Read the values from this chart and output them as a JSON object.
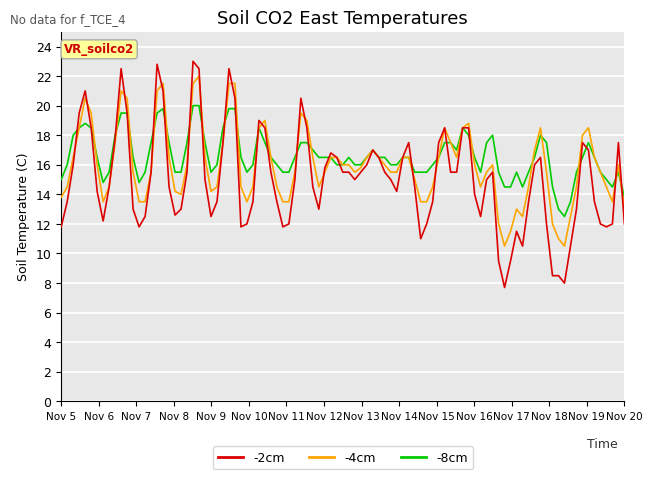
{
  "title": "Soil CO2 East Temperatures",
  "top_left_note": "No data for f_TCE_4",
  "ylabel": "Soil Temperature (C)",
  "xlabel": "Time",
  "annotation": "VR_soilco2",
  "ylim": [
    0,
    25
  ],
  "yticks": [
    0,
    2,
    4,
    6,
    8,
    10,
    12,
    14,
    16,
    18,
    20,
    22,
    24
  ],
  "xtick_labels": [
    "Nov 5",
    "Nov 6",
    "Nov 7",
    "Nov 8",
    "Nov 9",
    "Nov 10",
    "Nov 11",
    "Nov 12",
    "Nov 13",
    "Nov 14",
    "Nov 15",
    "Nov 16",
    "Nov 17",
    "Nov 18",
    "Nov 19",
    "Nov 20"
  ],
  "legend_labels": [
    "-2cm",
    "-4cm",
    "-8cm"
  ],
  "legend_colors": [
    "#dd0000",
    "#ffa500",
    "#00cc00"
  ],
  "bg_color": "#e8e8e8",
  "fig_bg_color": "#ffffff",
  "grid_color": "#ffffff",
  "line_width": 1.2,
  "title_fontsize": 13,
  "note_color": "#555555",
  "annotation_bg": "#ffff99",
  "annotation_border": "#aaaaaa",
  "annotation_text_color": "#cc0000",
  "series_2cm": [
    11.8,
    13.5,
    16.0,
    19.5,
    21.0,
    18.5,
    14.2,
    12.2,
    14.5,
    17.8,
    22.5,
    19.5,
    13.0,
    11.8,
    12.5,
    15.5,
    22.8,
    21.0,
    14.5,
    12.6,
    13.0,
    15.5,
    23.0,
    22.5,
    15.0,
    12.5,
    13.5,
    17.5,
    22.5,
    20.5,
    11.8,
    12.0,
    13.5,
    19.0,
    18.5,
    15.5,
    13.5,
    11.8,
    12.0,
    15.0,
    20.5,
    18.5,
    14.5,
    13.0,
    15.8,
    16.8,
    16.5,
    15.5,
    15.5,
    15.0,
    15.5,
    16.0,
    17.0,
    16.5,
    15.5,
    15.0,
    14.2,
    16.5,
    17.5,
    14.5,
    11.0,
    12.0,
    13.5,
    17.5,
    18.5,
    15.5,
    15.5,
    18.5,
    18.5,
    14.0,
    12.5,
    15.0,
    15.5,
    9.5,
    7.7,
    9.5,
    11.5,
    10.5,
    13.5,
    16.0,
    16.5,
    12.0,
    8.5,
    8.5,
    8.0,
    10.5,
    13.0,
    17.5,
    17.0,
    13.5,
    12.0,
    11.8,
    12.0,
    17.5,
    12.0
  ],
  "series_4cm": [
    13.8,
    14.5,
    16.5,
    18.5,
    20.5,
    19.5,
    16.0,
    13.5,
    14.5,
    17.5,
    21.0,
    20.5,
    15.5,
    13.5,
    13.5,
    15.5,
    21.0,
    21.5,
    16.5,
    14.2,
    14.0,
    16.0,
    21.5,
    22.0,
    16.5,
    14.2,
    14.5,
    17.5,
    21.5,
    21.5,
    14.5,
    13.5,
    14.5,
    18.5,
    19.0,
    16.5,
    14.5,
    13.5,
    13.5,
    15.5,
    19.5,
    19.0,
    16.5,
    14.5,
    15.5,
    16.5,
    16.5,
    16.0,
    16.0,
    15.5,
    15.8,
    16.5,
    17.0,
    16.5,
    16.0,
    15.5,
    15.5,
    16.5,
    16.5,
    15.0,
    13.5,
    13.5,
    14.5,
    16.5,
    18.5,
    17.5,
    16.5,
    18.5,
    18.8,
    16.0,
    14.5,
    15.5,
    16.0,
    12.0,
    10.5,
    11.5,
    13.0,
    12.5,
    14.5,
    17.0,
    18.5,
    15.5,
    12.0,
    11.0,
    10.5,
    12.5,
    14.5,
    18.0,
    18.5,
    16.5,
    15.5,
    14.5,
    13.5,
    16.0,
    13.0
  ],
  "series_8cm": [
    15.0,
    16.0,
    18.0,
    18.5,
    18.8,
    18.5,
    16.5,
    14.8,
    15.5,
    18.0,
    19.5,
    19.5,
    16.5,
    14.8,
    15.5,
    17.5,
    19.5,
    19.8,
    17.5,
    15.5,
    15.5,
    17.5,
    20.0,
    20.0,
    17.5,
    15.5,
    16.0,
    18.5,
    19.8,
    19.8,
    16.5,
    15.5,
    16.0,
    18.5,
    17.5,
    16.5,
    16.0,
    15.5,
    15.5,
    16.5,
    17.5,
    17.5,
    17.0,
    16.5,
    16.5,
    16.5,
    16.0,
    16.0,
    16.5,
    16.0,
    16.0,
    16.5,
    17.0,
    16.5,
    16.5,
    16.0,
    16.0,
    16.5,
    16.5,
    15.5,
    15.5,
    15.5,
    16.0,
    16.5,
    17.5,
    17.5,
    17.0,
    18.5,
    18.0,
    16.5,
    15.5,
    17.5,
    18.0,
    15.5,
    14.5,
    14.5,
    15.5,
    14.5,
    15.5,
    16.5,
    18.0,
    17.5,
    14.5,
    13.0,
    12.5,
    13.5,
    15.5,
    16.5,
    17.5,
    16.5,
    15.5,
    15.0,
    14.5,
    15.5,
    13.8
  ]
}
